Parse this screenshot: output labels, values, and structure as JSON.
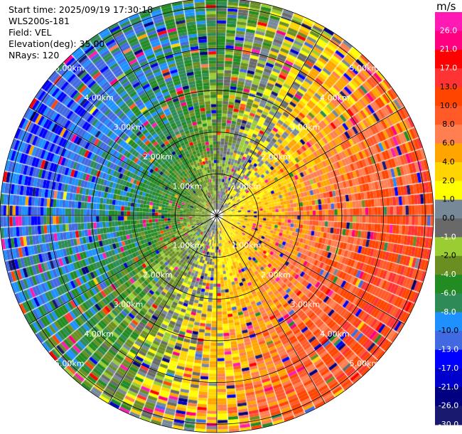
{
  "header": {
    "start_time": "Start time: 2025/09/19 17:30:18",
    "instrument": "WLS200s-181",
    "field": "Field: VEL",
    "elevation": "Elevation(deg): 35.00",
    "nrays": "NRays: 120"
  },
  "colorbar": {
    "unit": "m/s",
    "tick_labels": [
      "26.0",
      "21.0",
      "17.0",
      "13.0",
      "10.0",
      "8.0",
      "6.0",
      "4.0",
      "2.0",
      "1.0",
      "0.0",
      "-1.0",
      "-2.0",
      "-4.0",
      "-6.0",
      "-8.0",
      "-10.0",
      "-13.0",
      "-17.0",
      "-21.0",
      "-26.0",
      "-30.0"
    ],
    "bins": [
      {
        "lo": 26,
        "hi": 30,
        "color": "#ff1ab3"
      },
      {
        "lo": 21,
        "hi": 26,
        "color": "#ff0080"
      },
      {
        "lo": 17,
        "hi": 21,
        "color": "#ff0000"
      },
      {
        "lo": 13,
        "hi": 17,
        "color": "#ff3333"
      },
      {
        "lo": 10,
        "hi": 13,
        "color": "#ff4500"
      },
      {
        "lo": 8,
        "hi": 10,
        "color": "#ff5a28"
      },
      {
        "lo": 6,
        "hi": 8,
        "color": "#ff7f50"
      },
      {
        "lo": 4,
        "hi": 6,
        "color": "#ffa500"
      },
      {
        "lo": 2,
        "hi": 4,
        "color": "#ffd400"
      },
      {
        "lo": 1,
        "hi": 2,
        "color": "#ffff00"
      },
      {
        "lo": 0,
        "hi": 1,
        "color": "#778899"
      },
      {
        "lo": -1,
        "hi": 0,
        "color": "#696969"
      },
      {
        "lo": -2,
        "hi": -1,
        "color": "#9acd32"
      },
      {
        "lo": -4,
        "hi": -2,
        "color": "#6b8e23"
      },
      {
        "lo": -6,
        "hi": -4,
        "color": "#228b22"
      },
      {
        "lo": -8,
        "hi": -6,
        "color": "#2e8b57"
      },
      {
        "lo": -10,
        "hi": -8,
        "color": "#1e90ff"
      },
      {
        "lo": -13,
        "hi": -10,
        "color": "#4169e1"
      },
      {
        "lo": -17,
        "hi": -13,
        "color": "#0000ff"
      },
      {
        "lo": -21,
        "hi": -17,
        "color": "#0000cd"
      },
      {
        "lo": -26,
        "hi": -21,
        "color": "#000080"
      },
      {
        "lo": -30,
        "hi": -26,
        "color": "#191970"
      }
    ]
  },
  "chart_data": {
    "type": "heatmap",
    "projection": "polar PPI (azimuth rays × range gates)",
    "field": "VEL",
    "units": "m/s",
    "nrays": 120,
    "range_ring_labels": [
      "1.00km",
      "2.00km",
      "3.00km",
      "4.00km",
      "5.00km"
    ],
    "range_rings_km": [
      1,
      2,
      3,
      4,
      5
    ],
    "max_range_km": 5.2,
    "spoke_angles_deg": [
      0,
      30,
      60,
      90,
      120,
      150,
      180,
      210,
      240,
      270,
      300,
      330
    ],
    "velocity_pattern": {
      "description": "Dipole radial-velocity pattern: positive (toward yellow/orange/red) on the east side, negative (green/blue) on the west side, near-zero gray/olive close to center",
      "positive_peak_azimuth_deg": 110,
      "max_speed_ms": 12,
      "near_center_speed_ms": 1.5
    }
  }
}
